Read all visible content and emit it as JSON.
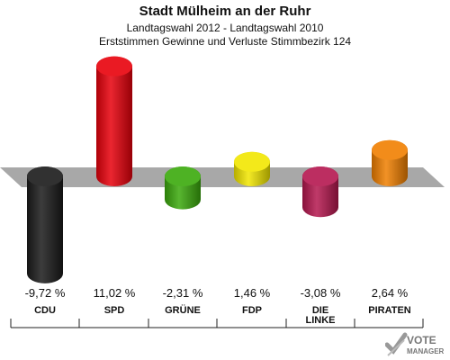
{
  "chart_data": {
    "type": "bar",
    "title": "Stadt Mülheim an der Ruhr",
    "subtitle": "Landtagswahl 2012 - Landtagswahl 2010",
    "subtitle2": "Erststimmen Gewinne und Verluste Stimmbezirk 124",
    "categories": [
      "CDU",
      "SPD",
      "GRÜNE",
      "FDP",
      "DIE LINKE",
      "PIRATEN"
    ],
    "values": [
      -9.72,
      11.02,
      -2.31,
      1.46,
      -3.08,
      2.64
    ],
    "value_labels": [
      "-9,72 %",
      "11,02 %",
      "-2,31 %",
      "1,46 %",
      "-3,08 %",
      "2,64 %"
    ],
    "colors": [
      "#1a1a1a",
      "#e8000b",
      "#3aa90c",
      "#f2e600",
      "#b5174f",
      "#f07f00"
    ],
    "ylim": [
      -10,
      12
    ],
    "grid": false
  },
  "logo": {
    "line1": "VOTE",
    "line2": "MANAGER"
  }
}
